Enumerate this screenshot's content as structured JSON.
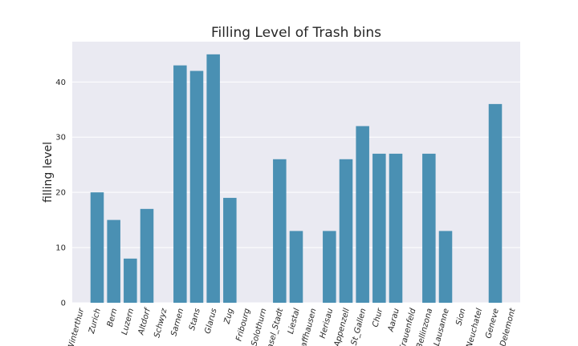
{
  "chart_data": {
    "type": "bar",
    "title": "Filling Level of Trash bins",
    "xlabel": "",
    "ylabel": "filling level",
    "categories": [
      "Winterthur",
      "Zurich",
      "Bern",
      "Luzern",
      "Altdorf",
      "Schwyz",
      "Sarnen",
      "Stans",
      "Glarus",
      "Zug",
      "Fribourg",
      "Solothurn",
      "Basel_Stadt",
      "Liestal",
      "Schaffhausen",
      "Herisau",
      "Appenzell",
      "St_Gallen",
      "Chur",
      "Aarau",
      "Frauenfeld",
      "Bellinzona",
      "Lausanne",
      "Sion",
      "Neuchatel",
      "Geneve",
      "Delemont"
    ],
    "values": [
      0,
      20,
      15,
      8,
      17,
      0,
      43,
      42,
      45,
      19,
      0,
      0,
      26,
      13,
      0,
      13,
      26,
      32,
      27,
      27,
      0,
      27,
      13,
      0,
      0,
      36,
      0
    ],
    "ylim": [
      0,
      47.3
    ],
    "yticks": [
      0,
      10,
      20,
      30,
      40
    ],
    "grid": true,
    "bar_color": "#4a90b3",
    "background_color": "#eaeaf2"
  }
}
